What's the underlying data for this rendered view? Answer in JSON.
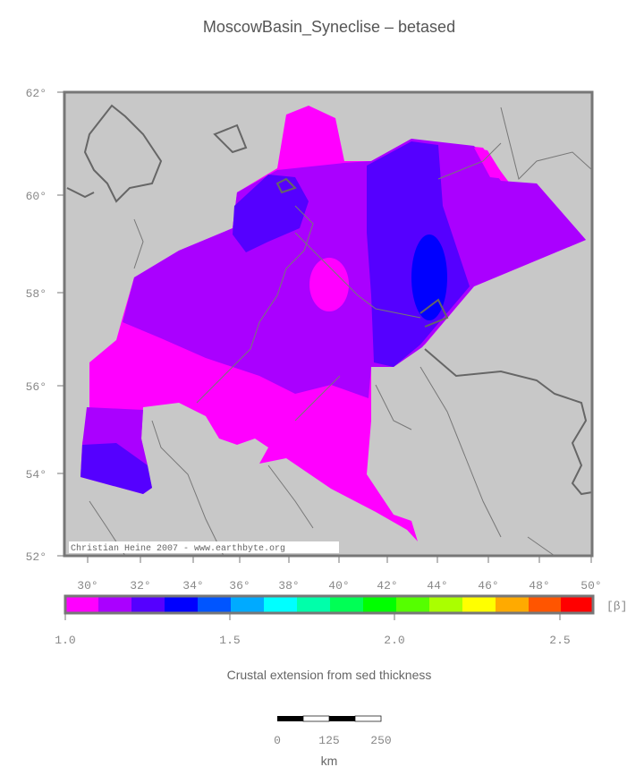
{
  "title": "MoscowBasin_Syneclise – betased",
  "map": {
    "lat_ticks": [
      "62°",
      "60°",
      "58°",
      "56°",
      "54°",
      "52°"
    ],
    "lon_ticks": [
      "30°",
      "32°",
      "34°",
      "36°",
      "38°",
      "40°",
      "42°",
      "44°",
      "46°",
      "48°",
      "50°"
    ],
    "credit": "Christian Heine 2007 - www.earthbyte.org"
  },
  "colorbar": {
    "unit": "[β]",
    "ticks": [
      "1.0",
      "1.5",
      "2.0",
      "2.5"
    ],
    "caption": "Crustal extension from sed thickness"
  },
  "scale_bar": {
    "ticks": [
      "0",
      "125",
      "250"
    ],
    "unit": "km"
  }
}
